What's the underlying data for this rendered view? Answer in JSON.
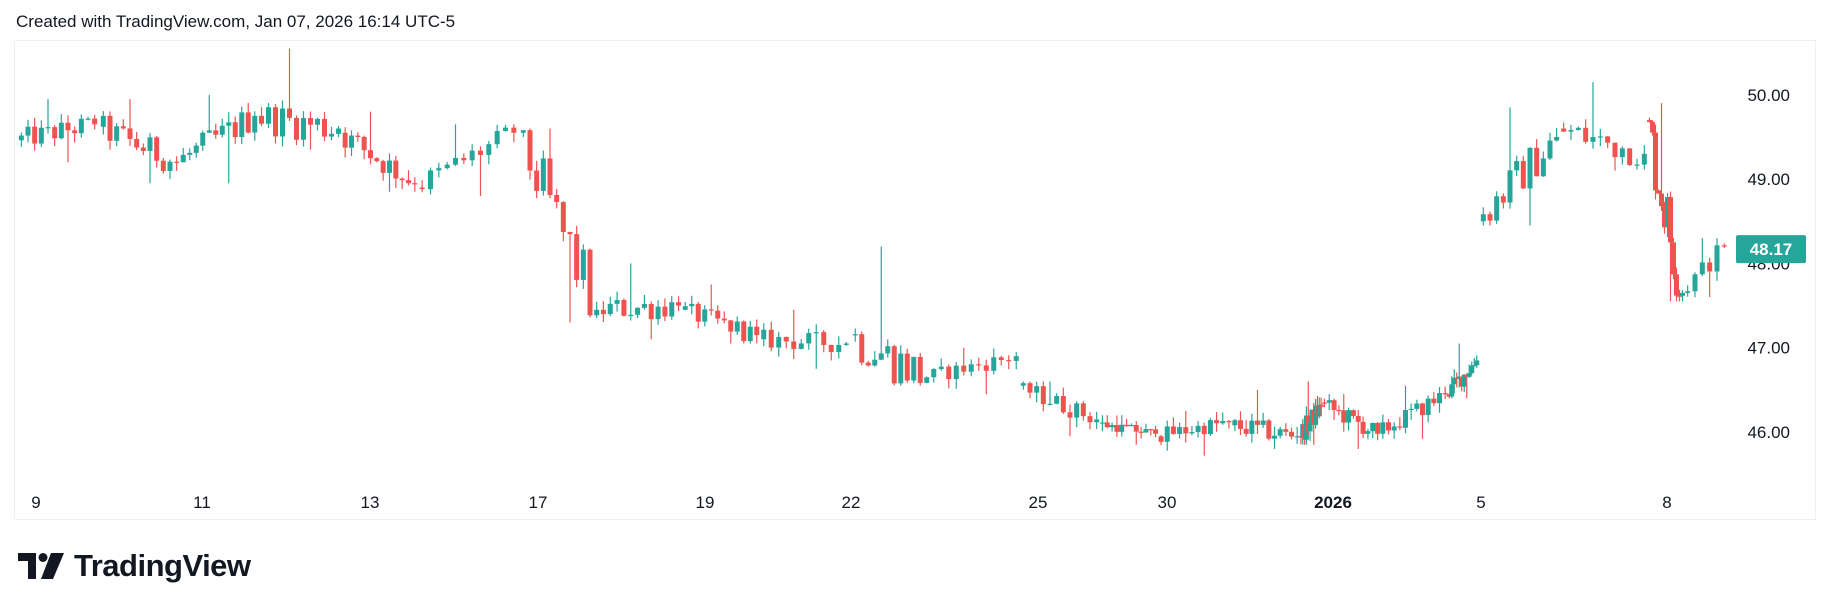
{
  "header": {
    "created_text": "Created with TradingView.com, Jan 07, 2026 16:14 UTC-5"
  },
  "footer": {
    "brand": "TradingView"
  },
  "colors": {
    "up": "#26a69a",
    "down": "#ef5350",
    "text": "#131722",
    "grid_border": "#eeeff2"
  },
  "chart_data": {
    "type": "candlestick",
    "x_tick_labels": [
      "9",
      "11",
      "13",
      "17",
      "19",
      "22",
      "25",
      "30",
      "2026",
      "5",
      "8"
    ],
    "y_tick_labels": [
      "50.00",
      "49.00",
      "48.00",
      "47.00",
      "46.00"
    ],
    "y_ticks": [
      50,
      49,
      48,
      47,
      46
    ],
    "ylim": [
      45.55,
      50.65
    ],
    "last_price": 48.17,
    "last_price_label": "48.17",
    "sessions": [
      {
        "label": "9",
        "o": 49.46,
        "c": 49.65,
        "h": 49.95,
        "l": 49.2,
        "n": 12
      },
      {
        "label": "10",
        "o": 49.62,
        "c": 49.2,
        "h": 49.95,
        "l": 48.95,
        "n": 12
      },
      {
        "label": "11",
        "o": 49.2,
        "c": 49.75,
        "h": 50.0,
        "l": 48.95,
        "n": 12
      },
      {
        "label": "12",
        "o": 49.75,
        "c": 49.6,
        "h": 50.55,
        "l": 49.35,
        "n": 12
      },
      {
        "label": "13",
        "o": 49.55,
        "c": 48.95,
        "h": 49.8,
        "l": 48.85,
        "n": 12
      },
      {
        "label": "16",
        "o": 48.9,
        "c": 49.55,
        "h": 49.65,
        "l": 48.8,
        "n": 12
      },
      {
        "label": "17",
        "o": 49.55,
        "c": 47.45,
        "h": 49.6,
        "l": 47.3,
        "n": 12
      },
      {
        "label": "18",
        "o": 47.45,
        "c": 47.5,
        "h": 48.0,
        "l": 47.1,
        "n": 12
      },
      {
        "label": "19",
        "o": 47.45,
        "c": 47.15,
        "h": 47.75,
        "l": 47.05,
        "n": 12
      },
      {
        "label": "20",
        "o": 47.1,
        "c": 47.05,
        "h": 47.45,
        "l": 46.75,
        "n": 12
      },
      {
        "label": "22",
        "o": 47.15,
        "c": 46.65,
        "h": 48.2,
        "l": 46.55,
        "n": 12
      },
      {
        "label": "23",
        "o": 46.65,
        "c": 46.9,
        "h": 47.0,
        "l": 46.45,
        "n": 12
      },
      {
        "label": "24",
        "o": 46.55,
        "c": 46.15,
        "h": 46.6,
        "l": 45.95,
        "n": 12
      },
      {
        "label": "26",
        "o": 46.1,
        "c": 45.98,
        "h": 46.2,
        "l": 45.85,
        "n": 12
      },
      {
        "label": "29",
        "o": 45.95,
        "c": 46.12,
        "h": 46.25,
        "l": 45.72,
        "n": 12
      },
      {
        "label": "30",
        "o": 46.08,
        "c": 45.95,
        "h": 46.5,
        "l": 45.8,
        "n": 12
      },
      {
        "label": "31",
        "o": 45.95,
        "c": 46.3,
        "h": 46.6,
        "l": 45.85,
        "n": 12
      },
      {
        "label": "2026",
        "o": 46.35,
        "c": 45.98,
        "h": 46.45,
        "l": 45.8,
        "n": 12
      },
      {
        "label": "2",
        "o": 45.98,
        "c": 46.45,
        "h": 46.55,
        "l": 45.92,
        "n": 12
      },
      {
        "label": "5",
        "o": 46.45,
        "c": 46.85,
        "h": 47.05,
        "l": 46.4,
        "n": 12
      },
      {
        "label": "6",
        "o": 48.5,
        "c": 49.5,
        "h": 49.85,
        "l": 48.45,
        "n": 12
      },
      {
        "label": "7",
        "o": 49.6,
        "c": 49.3,
        "h": 50.15,
        "l": 49.1,
        "n": 12
      },
      {
        "label": "8",
        "o": 49.7,
        "c": 47.65,
        "h": 49.9,
        "l": 47.55,
        "n": 12
      },
      {
        "label": "9b",
        "o": 47.65,
        "c": 48.2,
        "h": 48.3,
        "l": 47.6,
        "n": 6
      }
    ]
  }
}
